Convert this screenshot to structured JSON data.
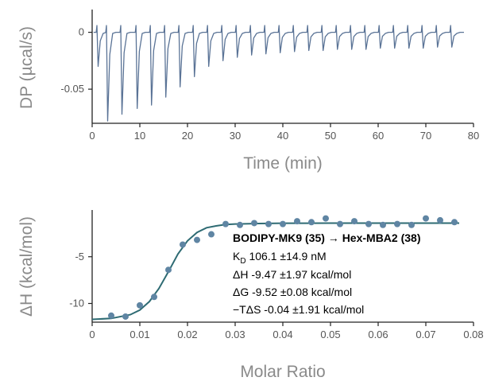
{
  "chart_data": [
    {
      "type": "line",
      "xlabel": "Time (min)",
      "ylabel": "DP (µcal/s)",
      "xlim": [
        0,
        80
      ],
      "ylim": [
        -0.08,
        0.02
      ],
      "xticks": [
        "0",
        "10",
        "20",
        "30",
        "40",
        "50",
        "60",
        "70",
        "80"
      ],
      "yticks": [
        "0",
        "-0.05"
      ],
      "series": [
        {
          "color": "#5a7396",
          "baseline": 0.0,
          "injection_times": [
            1.0,
            3.0,
            6.0,
            9.2,
            12.2,
            15.2,
            18.2,
            21.2,
            24.2,
            27.2,
            30.2,
            33.2,
            36.2,
            39.2,
            42.2,
            45.2,
            48.2,
            51.2,
            54.2,
            57.2,
            60.2,
            63.2,
            66.2,
            69.2,
            72.2,
            75.2
          ],
          "peak_minima": [
            -0.03,
            -0.078,
            -0.072,
            -0.067,
            -0.064,
            -0.057,
            -0.048,
            -0.039,
            -0.03,
            -0.025,
            -0.022,
            -0.02,
            -0.019,
            -0.018,
            -0.017,
            -0.016,
            -0.016,
            -0.015,
            -0.015,
            -0.015,
            -0.014,
            -0.014,
            -0.014,
            -0.014,
            -0.013,
            -0.013
          ],
          "x_end": 78
        }
      ]
    },
    {
      "type": "scatter",
      "xlabel": "Molar Ratio",
      "ylabel": "ΔH (kcal/mol)",
      "xlim": [
        0,
        0.08
      ],
      "ylim": [
        -12,
        0
      ],
      "xticks": [
        "0",
        "0.01",
        "0.02",
        "0.03",
        "0.04",
        "0.05",
        "0.06",
        "0.07",
        "0.08"
      ],
      "yticks": [
        "-5",
        "-10"
      ],
      "series": [
        {
          "kind": "points",
          "color": "#5f85a3",
          "x": [
            0.004,
            0.007,
            0.01,
            0.013,
            0.016,
            0.019,
            0.022,
            0.025,
            0.028,
            0.031,
            0.034,
            0.037,
            0.04,
            0.043,
            0.046,
            0.049,
            0.052,
            0.055,
            0.058,
            0.061,
            0.064,
            0.067,
            0.07,
            0.073,
            0.076
          ],
          "y": [
            -11.3,
            -11.4,
            -10.2,
            -9.3,
            -6.4,
            -3.7,
            -3.2,
            -2.6,
            -1.5,
            -1.6,
            -1.4,
            -1.5,
            -1.5,
            -1.2,
            -1.3,
            -0.9,
            -1.5,
            -1.2,
            -1.5,
            -1.6,
            -1.5,
            -1.6,
            -0.9,
            -1.1,
            -1.3
          ]
        },
        {
          "kind": "fit",
          "color": "#2e6b73",
          "x": [
            0.0,
            0.004,
            0.008,
            0.01,
            0.012,
            0.014,
            0.016,
            0.018,
            0.02,
            0.022,
            0.024,
            0.026,
            0.028,
            0.03,
            0.035,
            0.04,
            0.05,
            0.06,
            0.07,
            0.077
          ],
          "y": [
            -11.7,
            -11.6,
            -11.2,
            -10.7,
            -9.8,
            -8.4,
            -6.6,
            -4.7,
            -3.3,
            -2.4,
            -1.9,
            -1.7,
            -1.55,
            -1.5,
            -1.45,
            -1.42,
            -1.4,
            -1.4,
            -1.4,
            -1.4
          ]
        }
      ],
      "annotation": {
        "title": "BODIPY-MK9 (35) → Hex-MBA2 (38)",
        "kd_symbol": "K",
        "kd_sub": "D",
        "kd_value": " 106.1 ±14.9 nM",
        "dh": "ΔH -9.47 ±1.97 kcal/mol",
        "dg": "ΔG -9.52 ±0.08 kcal/mol",
        "tds": "−TΔS -0.04 ±1.91 kcal/mol"
      }
    }
  ]
}
